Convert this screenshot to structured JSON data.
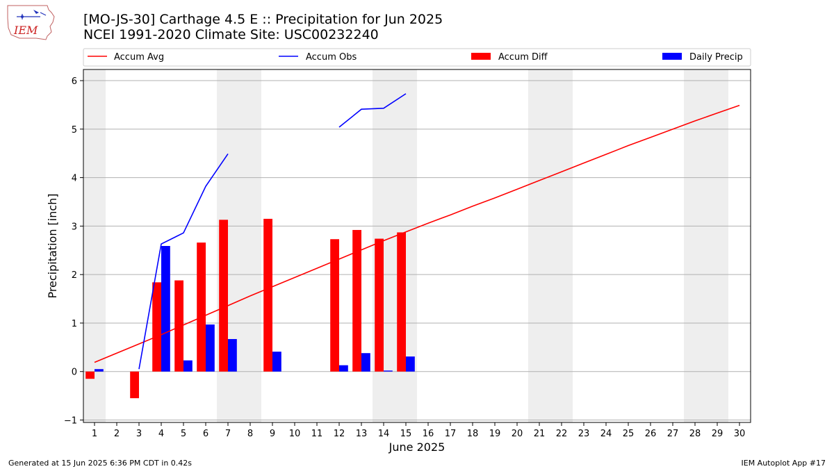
{
  "header": {
    "title_line1": "[MO-JS-30] Carthage 4.5 E :: Precipitation for Jun 2025",
    "title_line2": "NCEI 1991-2020 Climate Site: USC00232240",
    "logo_text": "IEM"
  },
  "footer": {
    "generated": "Generated at 15 Jun 2025 6:36 PM CDT in 0.42s",
    "app": "IEM Autoplot App #17"
  },
  "chart_data": {
    "type": "bar",
    "xlabel": "June 2025",
    "ylabel": "Precipitation [inch]",
    "xlim": [
      0.5,
      30.5
    ],
    "ylim": [
      -1.05,
      6.23
    ],
    "x_ticks": [
      1,
      2,
      3,
      4,
      5,
      6,
      7,
      8,
      9,
      10,
      11,
      12,
      13,
      14,
      15,
      16,
      17,
      18,
      19,
      20,
      21,
      22,
      23,
      24,
      25,
      26,
      27,
      28,
      29,
      30
    ],
    "y_ticks": [
      -1,
      0,
      1,
      2,
      3,
      4,
      5,
      6
    ],
    "grid": "horizontal",
    "legend_placement": "top, above plot",
    "weekend_shading": [
      [
        0.5,
        1.5
      ],
      [
        6.5,
        8.5
      ],
      [
        13.5,
        15.5
      ],
      [
        20.5,
        22.5
      ],
      [
        27.5,
        29.5
      ]
    ],
    "colors": {
      "avg": "#ff0000",
      "obs": "#0000ff",
      "diff": "#ff0000",
      "daily": "#0000ff",
      "shade": "#eeeeee",
      "grid": "#b0b0b0"
    },
    "series": [
      {
        "name": "Accum Avg",
        "kind": "line",
        "x": [
          1,
          2,
          3,
          4,
          5,
          6,
          7,
          8,
          9,
          10,
          11,
          12,
          13,
          14,
          15,
          16,
          17,
          18,
          19,
          20,
          21,
          22,
          23,
          24,
          25,
          26,
          27,
          28,
          29,
          30
        ],
        "values": [
          0.19,
          0.38,
          0.57,
          0.76,
          0.96,
          1.16,
          1.36,
          1.56,
          1.75,
          1.94,
          2.13,
          2.32,
          2.51,
          2.7,
          2.88,
          3.06,
          3.23,
          3.41,
          3.58,
          3.76,
          3.94,
          4.12,
          4.3,
          4.48,
          4.66,
          4.83,
          5.0,
          5.17,
          5.33,
          5.49
        ]
      },
      {
        "name": "Accum Obs",
        "kind": "line",
        "segments": [
          {
            "x": [
              3,
              4,
              5,
              6,
              7
            ],
            "values": [
              0.05,
              2.63,
              2.86,
              3.82,
              4.49
            ]
          },
          {
            "x": [
              12,
              13,
              14,
              15
            ],
            "values": [
              5.04,
              5.41,
              5.43,
              5.73
            ]
          }
        ]
      },
      {
        "name": "Accum Diff",
        "kind": "bar",
        "x": [
          1,
          3,
          4,
          5,
          6,
          7,
          9,
          12,
          13,
          14,
          15
        ],
        "values": [
          -0.15,
          -0.55,
          1.84,
          1.88,
          2.66,
          3.13,
          3.15,
          2.73,
          2.92,
          2.74,
          2.87
        ]
      },
      {
        "name": "Daily Precip",
        "kind": "bar",
        "x": [
          1,
          4,
          5,
          6,
          7,
          9,
          12,
          13,
          14,
          15
        ],
        "values": [
          0.05,
          2.59,
          0.23,
          0.97,
          0.67,
          0.41,
          0.13,
          0.38,
          0.02,
          0.31
        ]
      }
    ]
  }
}
